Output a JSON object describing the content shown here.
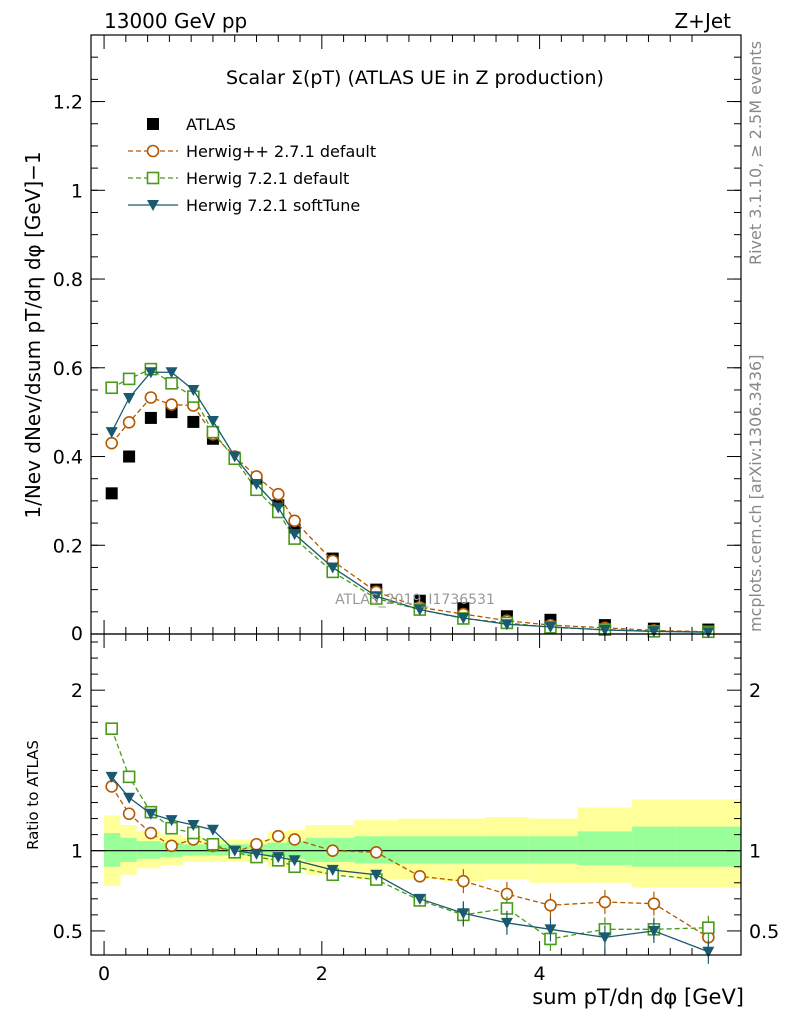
{
  "header": {
    "energy_label": "13000 GeV pp",
    "process_label": "Z+Jet",
    "rivet_label": "Rivet 3.1.10, ≥ 2.5M events",
    "mcplots_label": "mcplots.cern.ch [arXiv:1306.3436]",
    "watermark": "ATLAS_2019_I1736531"
  },
  "chart_data": [
    {
      "type": "scatter",
      "title": "Scalar Σ(pT) (ATLAS UE in Z production)",
      "ylabel": "1/Nev dNev/dsum pT/dη dφ [GeV]−1",
      "xlim": [
        -0.12,
        5.85
      ],
      "ylim": [
        0,
        1.35
      ],
      "yticks": [
        "0.2",
        "0.4",
        "0.6",
        "0.8",
        "1",
        "1.2"
      ],
      "legend_position": "top-left",
      "x": [
        0.07,
        0.23,
        0.43,
        0.62,
        0.82,
        1.0,
        1.2,
        1.4,
        1.6,
        1.75,
        2.1,
        2.5,
        2.9,
        3.3,
        3.7,
        4.1,
        4.6,
        5.05,
        5.55
      ],
      "series": [
        {
          "name": "ATLAS",
          "style": "data",
          "color": "#000000",
          "values": [
            0.317,
            0.4,
            0.487,
            0.5,
            0.478,
            0.44,
            0.395,
            0.34,
            0.29,
            0.235,
            0.17,
            0.1,
            0.075,
            0.058,
            0.04,
            0.032,
            0.02,
            0.012,
            0.01
          ]
        },
        {
          "name": "Herwig++ 2.7.1 default",
          "style": "circle",
          "color": "#b35900",
          "values": [
            0.43,
            0.477,
            0.533,
            0.517,
            0.515,
            0.45,
            0.4,
            0.355,
            0.315,
            0.255,
            0.165,
            0.095,
            0.06,
            0.045,
            0.03,
            0.02,
            0.014,
            0.008,
            0.005
          ]
        },
        {
          "name": "Herwig 7.2.1 default",
          "style": "square",
          "color": "#4a9a1a",
          "values": [
            0.555,
            0.575,
            0.597,
            0.565,
            0.535,
            0.455,
            0.395,
            0.325,
            0.275,
            0.215,
            0.14,
            0.08,
            0.055,
            0.035,
            0.025,
            0.015,
            0.01,
            0.006,
            0.005
          ]
        },
        {
          "name": "Herwig 7.2.1 softTune",
          "style": "triangle",
          "color": "#1b5a6e",
          "values": [
            0.455,
            0.532,
            0.59,
            0.59,
            0.55,
            0.48,
            0.4,
            0.338,
            0.285,
            0.225,
            0.15,
            0.085,
            0.055,
            0.036,
            0.022,
            0.016,
            0.009,
            0.006,
            0.004
          ]
        }
      ]
    },
    {
      "type": "scatter",
      "ylabel": "Ratio to ATLAS",
      "xlabel": "sum pT/dη dφ [GeV]",
      "xlim": [
        -0.12,
        5.85
      ],
      "ylim": [
        0.35,
        2.35
      ],
      "yticks": [
        "0.5",
        "1",
        "2"
      ],
      "xticks": [
        "0",
        "2",
        "4"
      ],
      "reference_line": 1,
      "x": [
        0.07,
        0.23,
        0.43,
        0.62,
        0.82,
        1.0,
        1.2,
        1.4,
        1.6,
        1.75,
        2.1,
        2.5,
        2.9,
        3.3,
        3.7,
        4.1,
        4.6,
        5.05,
        5.55
      ],
      "bin_edges": [
        0.0,
        0.15,
        0.3,
        0.52,
        0.72,
        0.92,
        1.1,
        1.3,
        1.5,
        1.68,
        1.85,
        2.3,
        2.7,
        3.1,
        3.5,
        3.9,
        4.35,
        4.85,
        5.25,
        5.85
      ],
      "uncertainty_bands": [
        {
          "color": "#ffff99",
          "lo": [
            0.78,
            0.85,
            0.89,
            0.91,
            0.93,
            0.93,
            0.93,
            0.93,
            0.9,
            0.88,
            0.85,
            0.82,
            0.82,
            0.81,
            0.82,
            0.8,
            0.8,
            0.77,
            0.77
          ],
          "hi": [
            1.22,
            1.16,
            1.12,
            1.1,
            1.08,
            1.07,
            1.07,
            1.07,
            1.12,
            1.13,
            1.16,
            1.19,
            1.2,
            1.2,
            1.21,
            1.2,
            1.27,
            1.32,
            1.32
          ]
        },
        {
          "color": "#99ff99",
          "lo": [
            0.9,
            0.93,
            0.95,
            0.96,
            0.97,
            0.97,
            0.97,
            0.97,
            0.96,
            0.95,
            0.93,
            0.92,
            0.92,
            0.92,
            0.92,
            0.92,
            0.91,
            0.9,
            0.9
          ],
          "hi": [
            1.11,
            1.08,
            1.06,
            1.05,
            1.04,
            1.04,
            1.04,
            1.04,
            1.05,
            1.06,
            1.08,
            1.09,
            1.09,
            1.09,
            1.09,
            1.09,
            1.12,
            1.15,
            1.15
          ]
        }
      ],
      "series": [
        {
          "name": "Herwig++ 2.7.1 default",
          "style": "circle",
          "color": "#b35900",
          "values": [
            1.4,
            1.23,
            1.11,
            1.03,
            1.07,
            1.03,
            0.99,
            1.04,
            1.09,
            1.07,
            1.0,
            0.99,
            0.84,
            0.81,
            0.73,
            0.66,
            0.68,
            0.67,
            0.46
          ]
        },
        {
          "name": "Herwig 7.2.1 default",
          "style": "square",
          "color": "#4a9a1a",
          "values": [
            1.76,
            1.46,
            1.24,
            1.14,
            1.11,
            1.04,
            0.99,
            0.96,
            0.94,
            0.9,
            0.85,
            0.82,
            0.69,
            0.6,
            0.64,
            0.45,
            0.51,
            0.51,
            0.52
          ]
        },
        {
          "name": "Herwig 7.2.1 softTune",
          "style": "triangle",
          "color": "#1b5a6e",
          "values": [
            1.46,
            1.33,
            1.23,
            1.19,
            1.16,
            1.13,
            1.0,
            0.98,
            0.96,
            0.94,
            0.88,
            0.85,
            0.7,
            0.61,
            0.55,
            0.51,
            0.46,
            0.5,
            0.37
          ]
        }
      ]
    }
  ]
}
